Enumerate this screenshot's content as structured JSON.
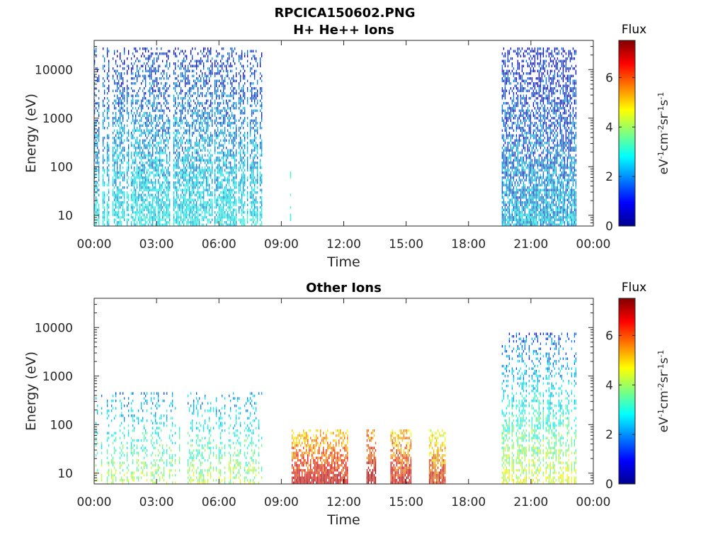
{
  "figure": {
    "title": "RPCICA150602.PNG"
  },
  "chart_data": [
    {
      "type": "heatmap",
      "title": "H+ He++ Ions",
      "xlabel": "Time",
      "ylabel": "Energy (eV)",
      "x_ticks": [
        "00:00",
        "03:00",
        "06:00",
        "09:00",
        "12:00",
        "15:00",
        "18:00",
        "21:00",
        "00:00"
      ],
      "x_range_hours": [
        0,
        24
      ],
      "y_scale": "log",
      "y_ticks": [
        "10",
        "100",
        "1000",
        "10000"
      ],
      "y_range": [
        6,
        40000
      ],
      "colorbar": {
        "label_top": "Flux",
        "label_side": "eV-1cm-2sr-1s-1",
        "ticks": [
          "0",
          "2",
          "4",
          "6"
        ],
        "range": [
          0,
          7.5
        ],
        "colormap": "jet"
      },
      "data_blocks": [
        {
          "start_hour": 0.0,
          "end_hour": 8.1,
          "min_energy": 6,
          "max_energy": 30000,
          "level_low_energy": 2.8,
          "level_high_energy": 1.2,
          "density": 0.75
        },
        {
          "start_hour": 9.35,
          "end_hour": 9.45,
          "min_energy": 6,
          "max_energy": 80,
          "level_low_energy": 3.5,
          "level_high_energy": 3.0,
          "density": 0.5
        },
        {
          "start_hour": 19.6,
          "end_hour": 23.2,
          "min_energy": 6,
          "max_energy": 30000,
          "level_low_energy": 2.2,
          "level_high_energy": 1.0,
          "density": 0.85
        }
      ]
    },
    {
      "type": "heatmap",
      "title": "Other Ions",
      "xlabel": "Time",
      "ylabel": "Energy (eV)",
      "x_ticks": [
        "00:00",
        "03:00",
        "06:00",
        "09:00",
        "12:00",
        "15:00",
        "18:00",
        "21:00",
        "00:00"
      ],
      "x_range_hours": [
        0,
        24
      ],
      "y_scale": "log",
      "y_ticks": [
        "10",
        "100",
        "1000",
        "10000"
      ],
      "y_range": [
        6,
        40000
      ],
      "colorbar": {
        "label_top": "Flux",
        "label_side": "eV-1cm-2sr-1s-1",
        "ticks": [
          "0",
          "2",
          "4",
          "6"
        ],
        "range": [
          0,
          7.5
        ],
        "colormap": "jet"
      },
      "data_blocks": [
        {
          "start_hour": 0.0,
          "end_hour": 8.1,
          "min_energy": 6,
          "max_energy": 500,
          "level_low_energy": 4.2,
          "level_high_energy": 2.0,
          "density": 0.45
        },
        {
          "start_hour": 9.5,
          "end_hour": 12.2,
          "min_energy": 6,
          "max_energy": 80,
          "level_low_energy": 7.0,
          "level_high_energy": 5.0,
          "density": 0.95
        },
        {
          "start_hour": 13.1,
          "end_hour": 13.55,
          "min_energy": 6,
          "max_energy": 80,
          "level_low_energy": 7.2,
          "level_high_energy": 5.5,
          "density": 0.95
        },
        {
          "start_hour": 14.25,
          "end_hour": 15.25,
          "min_energy": 6,
          "max_energy": 80,
          "level_low_energy": 6.8,
          "level_high_energy": 5.0,
          "density": 0.95
        },
        {
          "start_hour": 16.1,
          "end_hour": 16.9,
          "min_energy": 6,
          "max_energy": 80,
          "level_low_energy": 6.5,
          "level_high_energy": 4.5,
          "density": 0.95
        },
        {
          "start_hour": 19.6,
          "end_hour": 23.2,
          "min_energy": 6,
          "max_energy": 8000,
          "level_low_energy": 4.5,
          "level_high_energy": 1.5,
          "density": 0.6
        }
      ]
    }
  ]
}
